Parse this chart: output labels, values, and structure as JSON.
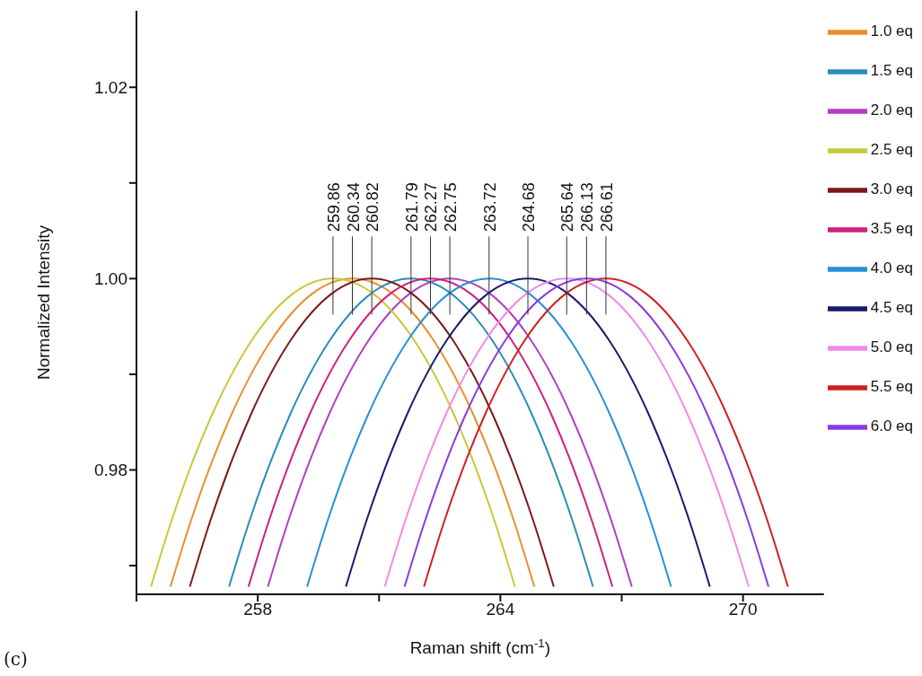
{
  "chart_data": {
    "type": "line",
    "xlabel": "Raman shift (cm$^{-1}$)",
    "ylabel": "Normalized Intensity",
    "xlim": [
      255,
      272
    ],
    "xticks": [
      {
        "value": 255,
        "label": null
      },
      258,
      {
        "value": 261,
        "label": null
      },
      264,
      {
        "value": 267,
        "label": null
      },
      270
    ],
    "ylim": [
      0.967,
      1.028
    ],
    "yticks": [
      {
        "value": 0.97,
        "label": null
      },
      0.98,
      {
        "value": 0.99,
        "label": null
      },
      {
        "value": 1,
        "label": "1.00"
      },
      {
        "value": 1.01,
        "label": null
      },
      1.02
    ],
    "grid": false,
    "legend": "top right",
    "marker": "none",
    "line_style": "solid",
    "series": [
      {
        "name": "1.0 eq",
        "color": "#e8902c",
        "x": [
          255.84,
          256.34,
          257.34,
          258.34,
          259.34,
          260.34,
          261.34,
          262.34,
          263.34,
          264.34,
          264.84
        ],
        "values": [
          0.9678,
          0.9746,
          0.9857,
          0.9936,
          0.9984,
          1.0,
          0.9984,
          0.9936,
          0.9857,
          0.9746,
          0.9678
        ]
      },
      {
        "name": "1.5 eq",
        "color": "#2a8cb8",
        "x": [
          257.29,
          257.79,
          258.79,
          259.79,
          260.79,
          261.79,
          262.79,
          263.79,
          264.79,
          265.79,
          266.29
        ],
        "values": [
          0.9678,
          0.9746,
          0.9857,
          0.9936,
          0.9984,
          1.0,
          0.9984,
          0.9936,
          0.9857,
          0.9746,
          0.9678
        ]
      },
      {
        "name": "2.0 eq",
        "color": "#b040c0",
        "x": [
          258.25,
          258.75,
          259.75,
          260.75,
          261.75,
          262.75,
          263.75,
          264.75,
          265.75,
          266.75,
          267.25
        ],
        "values": [
          0.9678,
          0.9746,
          0.9857,
          0.9936,
          0.9984,
          1.0,
          0.9984,
          0.9936,
          0.9857,
          0.9746,
          0.9678
        ]
      },
      {
        "name": "2.5 eq",
        "color": "#c8c83a",
        "x": [
          255.36,
          255.86,
          256.86,
          257.86,
          258.86,
          259.86,
          260.86,
          261.86,
          262.86,
          263.86,
          264.36
        ],
        "values": [
          0.9678,
          0.9746,
          0.9857,
          0.9936,
          0.9984,
          1.0,
          0.9984,
          0.9936,
          0.9857,
          0.9746,
          0.9678
        ]
      },
      {
        "name": "3.0 eq",
        "color": "#7a1a1a",
        "x": [
          256.32,
          256.82,
          257.82,
          258.82,
          259.82,
          260.82,
          261.82,
          262.82,
          263.82,
          264.82,
          265.32
        ],
        "values": [
          0.9678,
          0.9746,
          0.9857,
          0.9936,
          0.9984,
          1.0,
          0.9984,
          0.9936,
          0.9857,
          0.9746,
          0.9678
        ]
      },
      {
        "name": "3.5 eq",
        "color": "#d0207a",
        "x": [
          257.77,
          258.27,
          259.27,
          260.27,
          261.27,
          262.27,
          263.27,
          264.27,
          265.27,
          266.27,
          266.77
        ],
        "values": [
          0.9678,
          0.9746,
          0.9857,
          0.9936,
          0.9984,
          1.0,
          0.9984,
          0.9936,
          0.9857,
          0.9746,
          0.9678
        ]
      },
      {
        "name": "4.0 eq",
        "color": "#2890d8",
        "x": [
          259.22,
          259.72,
          260.72,
          261.72,
          262.72,
          263.72,
          264.72,
          265.72,
          266.72,
          267.72,
          268.22
        ],
        "values": [
          0.9678,
          0.9746,
          0.9857,
          0.9936,
          0.9984,
          1.0,
          0.9984,
          0.9936,
          0.9857,
          0.9746,
          0.9678
        ]
      },
      {
        "name": "4.5 eq",
        "color": "#1a1a6a",
        "x": [
          260.18,
          260.68,
          261.68,
          262.68,
          263.68,
          264.68,
          265.68,
          266.68,
          267.68,
          268.68,
          269.18
        ],
        "values": [
          0.9678,
          0.9746,
          0.9857,
          0.9936,
          0.9984,
          1.0,
          0.9984,
          0.9936,
          0.9857,
          0.9746,
          0.9678
        ]
      },
      {
        "name": "5.0 eq",
        "color": "#f08ae8",
        "x": [
          261.14,
          261.64,
          262.64,
          263.64,
          264.64,
          265.64,
          266.64,
          267.64,
          268.64,
          269.64,
          270.14
        ],
        "values": [
          0.9678,
          0.9746,
          0.9857,
          0.9936,
          0.9984,
          1.0,
          0.9984,
          0.9936,
          0.9857,
          0.9746,
          0.9678
        ]
      },
      {
        "name": "5.5 eq",
        "color": "#d02020",
        "x": [
          262.11,
          262.61,
          263.61,
          264.61,
          265.61,
          266.61,
          267.61,
          268.61,
          269.61,
          270.61,
          271.11
        ],
        "values": [
          0.9678,
          0.9746,
          0.9857,
          0.9936,
          0.9984,
          1.0,
          0.9984,
          0.9936,
          0.9857,
          0.9746,
          0.9678
        ]
      },
      {
        "name": "6.0 eq",
        "color": "#8a3ae0",
        "x": [
          261.63,
          262.13,
          263.13,
          264.13,
          265.13,
          266.13,
          267.13,
          268.13,
          269.13,
          270.13,
          270.63
        ],
        "values": [
          0.9678,
          0.9746,
          0.9857,
          0.9936,
          0.9984,
          1.0,
          0.9984,
          0.9936,
          0.9857,
          0.9746,
          0.9678
        ]
      }
    ],
    "annotations": [
      {
        "text": "259.86",
        "x": 259.86,
        "y": 1.0
      },
      {
        "text": "260.34",
        "x": 260.34,
        "y": 1.0
      },
      {
        "text": "260.82",
        "x": 260.82,
        "y": 1.0
      },
      {
        "text": "261.79",
        "x": 261.79,
        "y": 1.0
      },
      {
        "text": "262.27",
        "x": 262.27,
        "y": 1.0
      },
      {
        "text": "262.75",
        "x": 262.75,
        "y": 1.0
      },
      {
        "text": "263.72",
        "x": 263.72,
        "y": 1.0
      },
      {
        "text": "264.68",
        "x": 264.68,
        "y": 1.0
      },
      {
        "text": "265.64",
        "x": 265.64,
        "y": 1.0
      },
      {
        "text": "266.13",
        "x": 266.13,
        "y": 1.0
      },
      {
        "text": "266.61",
        "x": 266.61,
        "y": 1.0
      },
      "(c)"
    ]
  }
}
